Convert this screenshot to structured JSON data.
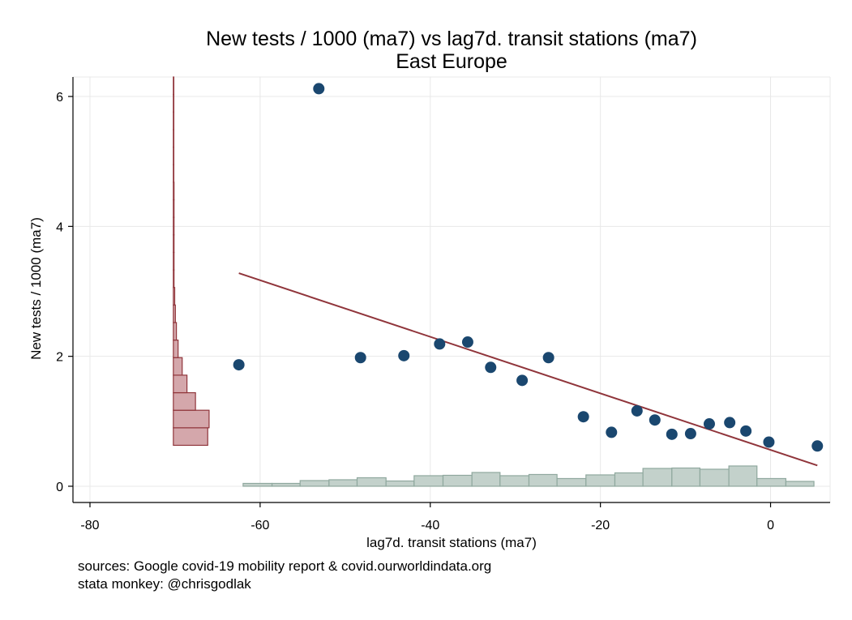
{
  "chart_data": {
    "type": "scatter",
    "title": "New tests / 1000 (ma7) vs lag7d. transit stations (ma7)",
    "subtitle": "East Europe",
    "xlabel": "lag7d. transit stations (ma7)",
    "ylabel": "New tests / 1000 (ma7)",
    "xlim": [
      -82,
      7
    ],
    "ylim": [
      -0.25,
      6.3
    ],
    "x_ticks": [
      -80,
      -60,
      -40,
      -20,
      0
    ],
    "y_ticks": [
      0,
      2,
      4,
      6
    ],
    "x_tick_labels": [
      "-80",
      "-60",
      "-40",
      "-20",
      "0"
    ],
    "y_tick_labels": [
      "0",
      "2",
      "4",
      "6"
    ],
    "grid": true,
    "colors": {
      "points": "#1a476f",
      "fit_line": "#90353b",
      "y_hist_fill": "#d4a7ab",
      "y_hist_stroke": "#90353b",
      "x_hist_fill": "#c3d1cb",
      "x_hist_stroke": "#8fa89e",
      "grid": "#e8e8e8"
    },
    "points": [
      {
        "x": -62.5,
        "y": 1.87
      },
      {
        "x": -53.1,
        "y": 6.12
      },
      {
        "x": -48.2,
        "y": 1.98
      },
      {
        "x": -43.1,
        "y": 2.01
      },
      {
        "x": -38.9,
        "y": 2.19
      },
      {
        "x": -35.6,
        "y": 2.22
      },
      {
        "x": -32.9,
        "y": 1.83
      },
      {
        "x": -29.2,
        "y": 1.63
      },
      {
        "x": -26.1,
        "y": 1.98
      },
      {
        "x": -22.0,
        "y": 1.07
      },
      {
        "x": -18.7,
        "y": 0.83
      },
      {
        "x": -15.7,
        "y": 1.16
      },
      {
        "x": -13.6,
        "y": 1.02
      },
      {
        "x": -11.6,
        "y": 0.8
      },
      {
        "x": -9.4,
        "y": 0.81
      },
      {
        "x": -7.2,
        "y": 0.96
      },
      {
        "x": -4.8,
        "y": 0.98
      },
      {
        "x": -2.9,
        "y": 0.85
      },
      {
        "x": -0.2,
        "y": 0.68
      },
      {
        "x": 5.5,
        "y": 0.62
      }
    ],
    "fit_line": {
      "x": [
        -62.5,
        5.5
      ],
      "y": [
        3.28,
        0.32
      ]
    },
    "x_histogram": {
      "bin_edges": [
        -62.0,
        -58.6,
        -55.3,
        -51.9,
        -48.6,
        -45.2,
        -41.9,
        -38.5,
        -35.1,
        -31.8,
        -28.4,
        -25.1,
        -21.7,
        -18.3,
        -15.0,
        -11.6,
        -8.3,
        -4.9,
        -1.6,
        1.8,
        5.1
      ],
      "frequencies": [
        0.07,
        0.07,
        0.14,
        0.16,
        0.21,
        0.13,
        0.26,
        0.27,
        0.34,
        0.26,
        0.29,
        0.19,
        0.28,
        0.33,
        0.44,
        0.45,
        0.42,
        0.5,
        0.19,
        0.12
      ]
    },
    "y_histogram": {
      "bin_edges": [
        0.63,
        0.9,
        1.17,
        1.44,
        1.71,
        1.98,
        2.25,
        2.52,
        2.79,
        3.06,
        3.33,
        3.6,
        3.87,
        4.14,
        4.41,
        4.68,
        4.95,
        5.22,
        5.49,
        5.76,
        6.03,
        6.3
      ],
      "frequencies": [
        10.1,
        10.5,
        6.5,
        4.0,
        2.6,
        1.4,
        0.9,
        0.6,
        0.4,
        0.2,
        0.2,
        0.2,
        0.2,
        0.2,
        0.2,
        0.1,
        0.1,
        0.1,
        0.05,
        0.05,
        0.05
      ],
      "baseline_x": -70.2
    }
  },
  "notes": {
    "line1": "sources: Google covid-19 mobility report & covid.ourworldindata.org",
    "line2": "stata monkey: @chrisgodlak"
  }
}
